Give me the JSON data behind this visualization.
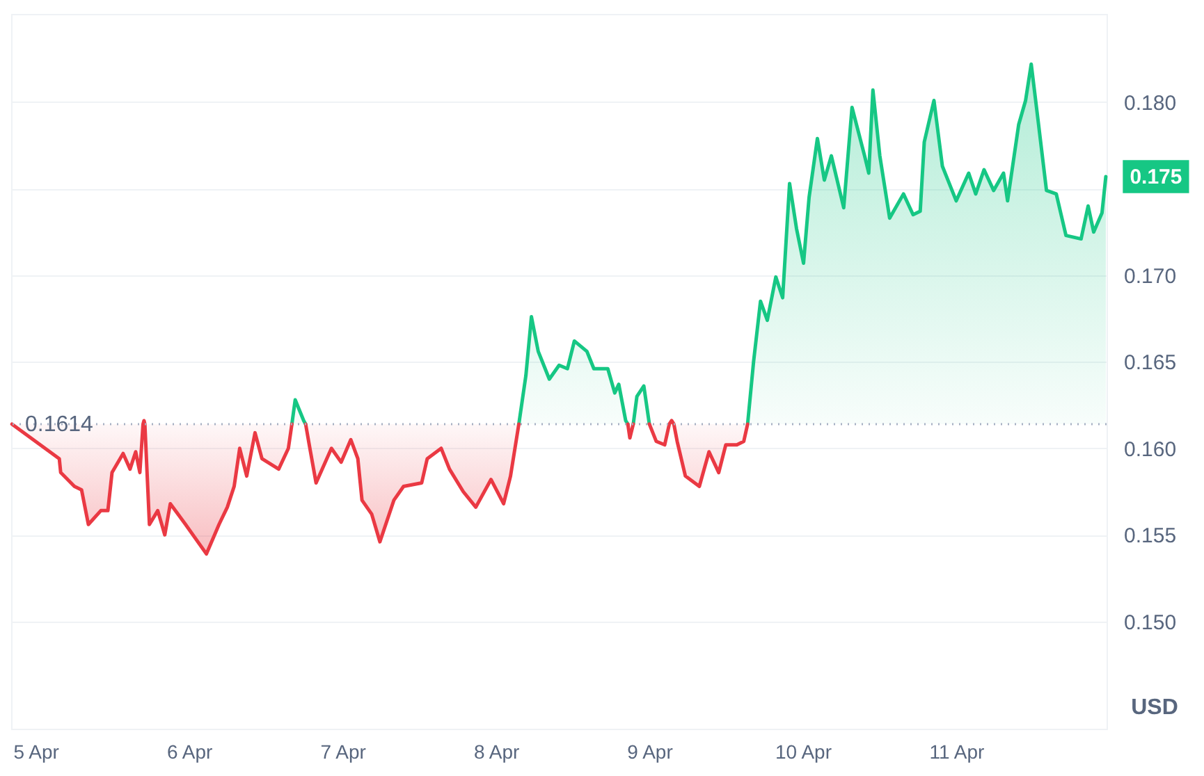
{
  "chart_data": {
    "type": "line",
    "ylabel": "USD",
    "x": [
      "--04-04T20:18",
      "--04-05T03:42",
      "--04-05T03:55",
      "--04-05T06:04",
      "--04-05T07:11",
      "--04-05T08:15",
      "--04-05T10:12",
      "--04-05T11:18",
      "--04-05T11:57",
      "--04-05T13:41",
      "--04-05T14:46",
      "--04-05T15:39",
      "--04-05T16:18",
      "--04-05T16:48",
      "--04-05T16:57",
      "--04-05T17:05",
      "--04-05T17:48",
      "--04-05T19:06",
      "--04-05T20:12",
      "--04-05T21:04",
      "--04-05T23:27",
      "--04-06T02:43",
      "--04-06T04:41",
      "--04-06T05:59",
      "--04-06T07:03",
      "--04-06T07:55",
      "--04-06T09:01",
      "--04-06T10:19",
      "--04-06T11:24",
      "--04-06T14:01",
      "--04-06T15:32",
      "--04-06T16:05",
      "--04-06T16:36",
      "--04-06T17:56",
      "--04-06T18:14",
      "--04-06T18:48",
      "--04-06T19:52",
      "--04-06T22:16",
      "--04-06T23:47",
      "--04-07T01:18",
      "--04-07T02:24",
      "--04-07T03:03",
      "--04-07T04:34",
      "--04-07T05:51",
      "--04-07T08:02",
      "--04-07T09:33",
      "--04-07T12:23",
      "--04-07T13:15",
      "--04-07T15:26",
      "--04-07T16:44",
      "--04-07T18:53",
      "--04-07T20:51",
      "--04-07T23:14",
      "--04-08T01:12",
      "--04-08T02:17",
      "--04-08T03:35",
      "--04-08T04:41",
      "--04-08T05:33",
      "--04-08T06:37",
      "--04-08T08:21",
      "--04-08T09:53",
      "--04-08T11:11",
      "--04-08T12:16",
      "--04-08T14:14",
      "--04-08T15:19",
      "--04-08T17:30",
      "--04-08T18:35",
      "--04-08T19:13",
      "--04-08T20:18",
      "--04-08T20:38",
      "--04-08T20:57",
      "--04-08T21:29",
      "--04-08T22:03",
      "--04-08T23:08",
      "--04-09T00:00",
      "--04-09T01:05",
      "--04-09T02:24",
      "--04-09T03:07",
      "--04-09T03:29",
      "--04-09T03:50",
      "--04-09T04:21",
      "--04-09T05:38",
      "--04-09T07:49",
      "--04-09T09:20",
      "--04-09T10:51",
      "--04-09T11:57",
      "--04-09T13:41",
      "--04-09T14:46",
      "--04-09T15:22",
      "--04-09T16:18",
      "--04-09T17:23",
      "--04-09T18:27",
      "--04-09T19:47",
      "--04-09T20:51",
      "--04-09T21:56",
      "--04-09T23:01",
      "--04-10T00:07",
      "--04-10T00:59",
      "--04-10T02:17",
      "--04-10T03:22",
      "--04-10T04:28",
      "--04-10T06:24",
      "--04-10T07:42",
      "--04-10T09:40",
      "--04-10T10:19",
      "--04-10T10:58",
      "--04-10T12:03",
      "--04-10T13:35",
      "--04-10T15:45",
      "--04-10T17:15",
      "--04-10T18:22",
      "--04-10T19:00",
      "--04-10T20:31",
      "--04-10T21:50",
      "--04-11T00:00",
      "--04-11T01:57",
      "--04-11T03:03",
      "--04-11T04:21",
      "--04-11T05:51",
      "--04-11T07:24",
      "--04-11T08:02",
      "--04-11T09:46",
      "--04-11T10:51",
      "--04-11T11:44",
      "--04-11T12:49",
      "--04-11T14:07",
      "--04-11T15:39",
      "--04-11T17:10",
      "--04-11T19:32",
      "--04-11T20:38",
      "--04-11T21:30",
      "--04-11T22:48",
      "--04-11T23:24"
    ],
    "series": [
      {
        "color": "#16c784",
        "values": [
          null,
          null,
          null,
          null,
          null,
          null,
          null,
          null,
          null,
          null,
          null,
          null,
          null,
          null,
          null,
          null,
          null,
          null,
          null,
          null,
          null,
          null,
          null,
          null,
          null,
          null,
          null,
          null,
          null,
          null,
          null,
          0.1614,
          0.1628,
          0.1616,
          0.1614,
          null,
          null,
          null,
          null,
          null,
          null,
          null,
          null,
          null,
          null,
          null,
          null,
          null,
          null,
          null,
          null,
          null,
          null,
          null,
          null,
          0.1614,
          0.1642,
          0.1676,
          0.1656,
          0.164,
          0.1648,
          0.1646,
          0.1662,
          0.1656,
          0.1646,
          0.1646,
          0.1632,
          0.1637,
          0.1616,
          0.1614,
          null,
          0.1614,
          0.163,
          0.1636,
          0.1614,
          null,
          null,
          null,
          null,
          null,
          null,
          null,
          null,
          null,
          null,
          null,
          null,
          null,
          0.1614,
          0.165,
          0.1685,
          0.1674,
          0.1699,
          0.1687,
          0.1753,
          0.1727,
          0.1707,
          0.1745,
          0.1779,
          0.1755,
          0.1769,
          0.1739,
          0.1797,
          0.1769,
          0.1759,
          0.1807,
          0.1769,
          0.1733,
          0.1747,
          0.1735,
          0.1737,
          0.1777,
          0.1801,
          0.1763,
          0.1743,
          0.1759,
          0.1747,
          0.1761,
          0.1749,
          0.1759,
          0.1743,
          0.1787,
          0.1801,
          0.1822,
          0.1789,
          0.1749,
          0.1747,
          0.1723,
          0.1721,
          0.174,
          0.1725,
          0.1736,
          0.1757
        ]
      },
      {
        "color": "#ea3943",
        "values": [
          0.1614,
          0.1594,
          0.1586,
          0.1578,
          0.1576,
          0.1556,
          0.1564,
          0.1564,
          0.1586,
          0.1597,
          0.1588,
          0.1598,
          0.1586,
          0.1614,
          0.1616,
          0.1614,
          0.1556,
          0.1564,
          0.155,
          0.1568,
          0.1556,
          0.1539,
          0.1556,
          0.1566,
          0.1578,
          0.16,
          0.1584,
          0.1609,
          0.1594,
          0.1588,
          0.16,
          0.1614,
          null,
          null,
          0.1614,
          0.1602,
          0.158,
          0.16,
          0.1592,
          0.1605,
          0.1594,
          0.157,
          0.1562,
          0.1546,
          0.157,
          0.1578,
          0.158,
          0.1594,
          0.16,
          0.1588,
          0.1575,
          0.1566,
          0.1582,
          0.1568,
          0.1584,
          0.1614,
          null,
          null,
          null,
          null,
          null,
          null,
          null,
          null,
          null,
          null,
          null,
          null,
          null,
          0.1614,
          0.1606,
          0.1614,
          null,
          null,
          0.1614,
          0.1604,
          0.1602,
          0.1614,
          0.1616,
          0.1614,
          0.1604,
          0.1584,
          0.1578,
          0.1598,
          0.1586,
          0.1602,
          0.1602,
          0.1604,
          0.1614,
          null,
          null,
          null,
          null,
          null,
          null,
          null,
          null,
          null,
          null,
          null,
          null,
          null,
          null,
          null,
          null,
          null,
          null,
          null,
          null,
          null,
          null,
          null,
          null,
          null,
          null,
          null,
          null,
          null,
          null,
          null,
          null,
          null,
          null,
          null,
          null,
          null,
          null,
          null,
          null,
          null,
          null,
          null,
          null
        ]
      }
    ],
    "xlim": [
      "--04-04T20:10",
      "--04-11T23:31"
    ],
    "xticks": [
      {
        "value": "--04-05",
        "label": "5 Apr"
      },
      {
        "value": "--04-06",
        "label": "6 Apr"
      },
      {
        "value": "--04-07",
        "label": "7 Apr"
      },
      {
        "value": "--04-08",
        "label": "8 Apr"
      },
      {
        "value": "--04-09",
        "label": "9 Apr"
      },
      {
        "value": "--04-10",
        "label": "10 Apr"
      },
      {
        "value": "--04-11",
        "label": "11 Apr"
      }
    ],
    "ylim": [
      0.1438,
      0.1851
    ],
    "yticks": [
      {
        "value": 0.15,
        "label": "0.150"
      },
      {
        "value": 0.155,
        "label": "0.155"
      },
      {
        "value": 0.16,
        "label": "0.160"
      },
      {
        "value": 0.165,
        "label": "0.165"
      },
      {
        "value": 0.17,
        "label": "0.170"
      },
      {
        "value": 0.175,
        "label": null
      },
      {
        "value": 0.18,
        "label": "0.180"
      }
    ],
    "grid": "y",
    "ref_lines": [
      {
        "axis": "y",
        "value": 0.1614,
        "label": "0.1614",
        "color": "#a6b0c3",
        "line_style": "dotted"
      }
    ],
    "annotations": [
      {
        "text": "0.175",
        "x": "--04-11T23:24",
        "y": 0.1757
      }
    ]
  }
}
